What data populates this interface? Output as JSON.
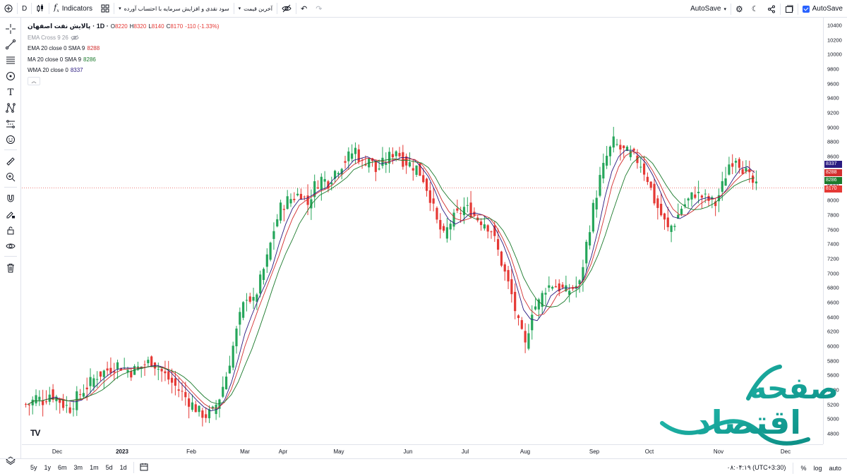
{
  "topbar": {
    "symbol": "D",
    "indicators_label": "Indicators",
    "dropdown_1": "سود نقدی و افزایش سرمایه با احتساب آورده",
    "dropdown_2": "آخرین قیمت",
    "autosave_label": "AutoSave",
    "autosave_check_label": "AutoSave"
  },
  "legend": {
    "symbol_name": "پالایش نفت اصفهان",
    "interval": "· 1D ·",
    "open_label": "O",
    "open": "8220",
    "high_label": "H",
    "high": "8320",
    "low_label": "L",
    "low": "8140",
    "close_label": "C",
    "close": "8170",
    "change": "-110 (-1.33%)",
    "ema_cross": "EMA Cross 9 26",
    "ema": {
      "label": "EMA 20 close 0 SMA 9",
      "value": "8288"
    },
    "ma": {
      "label": "MA 20 close 0 SMA 9",
      "value": "8286"
    },
    "wma": {
      "label": "WMA 20 close 0",
      "value": "8337"
    },
    "collapse_icon": "chevron-up-icon"
  },
  "price_axis": {
    "ticks": [
      "10400",
      "10200",
      "10000",
      "9800",
      "9600",
      "9400",
      "9200",
      "9000",
      "8800",
      "8600",
      "8400",
      "8200",
      "8000",
      "7800",
      "7600",
      "7400",
      "7200",
      "7000",
      "6800",
      "6600",
      "6400",
      "6200",
      "6000",
      "5800",
      "5600",
      "5400",
      "5200",
      "5000",
      "4800"
    ],
    "badges": [
      {
        "value": "8337",
        "color": "#2a1a80"
      },
      {
        "value": "8288",
        "color": "#d32f2f"
      },
      {
        "value": "8286",
        "color": "#1b7a2c"
      },
      {
        "value": "8170",
        "color": "#e53935"
      }
    ]
  },
  "time_axis": {
    "ticks": [
      "Dec",
      "2023",
      "Feb",
      "Mar",
      "Apr",
      "May",
      "Jun",
      "Jul",
      "Aug",
      "Sep",
      "Oct",
      "Nov",
      "Dec"
    ]
  },
  "bottombar": {
    "ranges": [
      "5y",
      "1y",
      "6m",
      "3m",
      "1m",
      "5d",
      "1d"
    ],
    "time": "۰۸:۰۴:۱۹ (UTC+3:30)",
    "percent": "%",
    "log": "log",
    "auto": "auto"
  },
  "watermark": {
    "text_1": "صفحه",
    "text_2": "اقتصاد"
  },
  "chart_data": {
    "type": "candlestick",
    "symbol": "پالایش نفت اصفهان",
    "interval": "1D",
    "ylim": [
      4700,
      10500
    ],
    "x_ticks": [
      "Dec",
      "2023",
      "Feb",
      "Mar",
      "Apr",
      "May",
      "Jun",
      "Jul",
      "Aug",
      "Sep",
      "Oct",
      "Nov",
      "Dec"
    ],
    "closes": [
      5200,
      5300,
      5250,
      5350,
      5300,
      5200,
      5150,
      5300,
      5400,
      5500,
      5600,
      5650,
      5700,
      5750,
      5700,
      5650,
      5700,
      5750,
      5800,
      5700,
      5600,
      5500,
      5400,
      5300,
      5200,
      5100,
      5050,
      5100,
      5300,
      5600,
      6000,
      6400,
      6700,
      6600,
      6900,
      7200,
      7600,
      7900,
      8000,
      8050,
      8100,
      7950,
      8200,
      8300,
      8250,
      8400,
      8500,
      8600,
      8700,
      8500,
      8600,
      8400,
      8500,
      8600,
      8700,
      8550,
      8500,
      8450,
      8300,
      8050,
      7700,
      7500,
      7700,
      7800,
      7900,
      7850,
      7750,
      7700,
      7600,
      7300,
      7000,
      6700,
      6300,
      6000,
      6500,
      6600,
      6800,
      6850,
      6800,
      6750,
      6800,
      6850,
      7400,
      7900,
      8300,
      8600,
      8800,
      8700,
      8650,
      8600,
      8500,
      8300,
      8000,
      7800,
      7600,
      7700,
      7900,
      8000,
      8100,
      8050,
      8000,
      7950,
      8200,
      8500,
      8600,
      8450,
      8300,
      8170
    ],
    "indicators": [
      {
        "name": "EMA 20 close 0 SMA 9",
        "last": 8288
      },
      {
        "name": "MA 20 close 0 SMA 9",
        "last": 8286
      },
      {
        "name": "WMA 20 close 0",
        "last": 8337
      }
    ],
    "last_price": 8170
  }
}
